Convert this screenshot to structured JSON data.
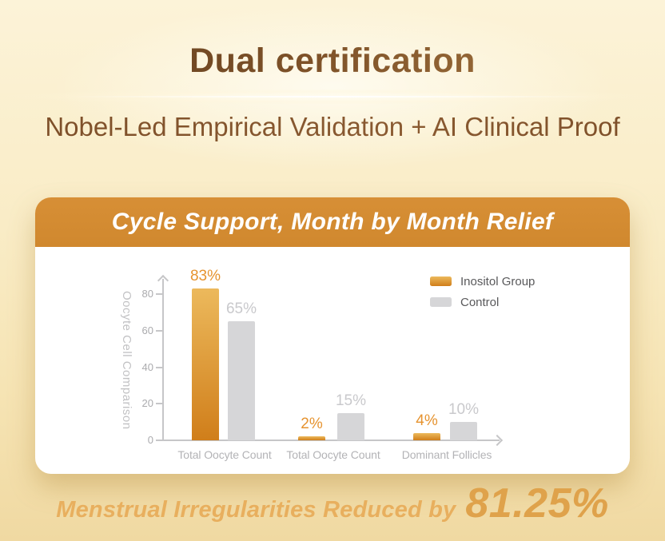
{
  "page": {
    "title": "Dual certification",
    "subtitle": "Nobel-Led Empirical Validation + AI Clinical Proof"
  },
  "card": {
    "header": "Cycle Support, Month by Month Relief"
  },
  "chart_data": {
    "type": "bar",
    "title": "Cycle Support, Month by Month Relief",
    "ylabel": "Oocyte Cell Comparison",
    "categories": [
      "Total Oocyte Count",
      "Total Oocyte Count",
      "Dominant Follicles"
    ],
    "series": [
      {
        "name": "Inositol Group",
        "values": [
          83,
          2,
          4
        ],
        "labels": [
          "83%",
          "2%",
          "4%"
        ],
        "gradient": [
          "#ecb95c",
          "#d07e1a"
        ],
        "color": "#d9912c",
        "label_color": "#e6932f"
      },
      {
        "name": "Control",
        "values": [
          65,
          15,
          10
        ],
        "labels": [
          "65%",
          "15%",
          "10%"
        ],
        "color": "#d6d6d8",
        "label_color": "#c9c9cc"
      }
    ],
    "ylim": [
      0,
      80
    ],
    "yticks": [
      0,
      20,
      40,
      60,
      80
    ],
    "legend_position": "top-right",
    "grid": false
  },
  "footer": {
    "text": "Menstrual Irregularities Reduced by",
    "highlight": "81.25%"
  },
  "colors": {
    "bg_top": "#fcf3d8",
    "bg_mid": "#f9ecc6",
    "bg_bottom": "#f0d9a2",
    "title_dark": "#64401f",
    "title_light": "#a5763f",
    "subtitle": "#8a5a31",
    "header_bg": "#d0882e",
    "header_text": "#ffffff",
    "axis": "#c6c6c8",
    "tick_text": "#ababae",
    "cat_text": "#b3b3b6",
    "ylabel_text": "#c2c2c4",
    "legend_text": "#59595b",
    "footer_text": "#e8af5e",
    "footer_highlight": "#dfa24b"
  }
}
